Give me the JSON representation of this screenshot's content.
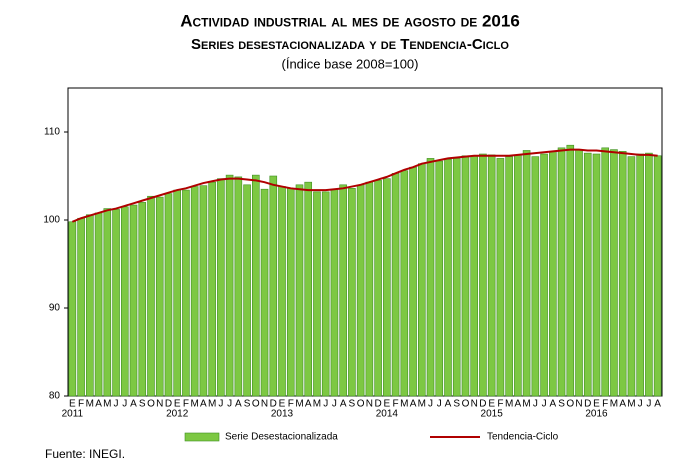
{
  "chart_data": {
    "type": "bar",
    "title": "Actividad industrial al mes de agosto de 2016",
    "subtitle": "Series desestacionalizada y de Tendencia-Ciclo",
    "note": "(Índice base 2008=100)",
    "source": "Fuente: INEGI.",
    "categories": [
      "E",
      "F",
      "M",
      "A",
      "M",
      "J",
      "J",
      "A",
      "S",
      "O",
      "N",
      "D",
      "E",
      "F",
      "M",
      "A",
      "M",
      "J",
      "J",
      "A",
      "S",
      "O",
      "N",
      "D",
      "E",
      "F",
      "M",
      "A",
      "M",
      "J",
      "J",
      "A",
      "S",
      "O",
      "N",
      "D",
      "E",
      "F",
      "M",
      "A",
      "M",
      "J",
      "J",
      "A",
      "S",
      "O",
      "N",
      "D",
      "E",
      "F",
      "M",
      "A",
      "M",
      "J",
      "J",
      "A",
      "S",
      "O",
      "N",
      "D",
      "E",
      "F",
      "M",
      "A",
      "M",
      "J",
      "J",
      "A"
    ],
    "years": [
      "2011",
      "2012",
      "2013",
      "2014",
      "2015",
      "2016"
    ],
    "series": [
      {
        "name": "Serie Desestacionalizada",
        "type": "bar",
        "color": "#7dc843",
        "values": [
          99.8,
          100.2,
          100.6,
          100.8,
          101.3,
          101.2,
          101.5,
          101.7,
          102.0,
          102.7,
          102.6,
          103.0,
          103.4,
          103.4,
          103.8,
          103.9,
          104.3,
          104.7,
          105.1,
          104.9,
          104.0,
          105.1,
          103.5,
          105.0,
          103.8,
          103.6,
          104.0,
          104.3,
          103.2,
          103.2,
          103.5,
          104.0,
          103.6,
          104.0,
          104.3,
          104.5,
          104.7,
          105.3,
          105.6,
          106.0,
          106.4,
          107.0,
          106.7,
          106.9,
          107.0,
          107.3,
          107.3,
          107.5,
          107.4,
          107.0,
          107.2,
          107.4,
          107.9,
          107.2,
          107.5,
          107.8,
          108.2,
          108.5,
          108.0,
          107.6,
          107.5,
          108.2,
          108.0,
          107.8,
          107.2,
          107.5,
          107.6,
          107.3
        ]
      },
      {
        "name": "Tendencia-Ciclo",
        "type": "line",
        "color": "#b00000",
        "values": [
          99.8,
          100.2,
          100.5,
          100.8,
          101.1,
          101.3,
          101.6,
          101.9,
          102.2,
          102.5,
          102.8,
          103.1,
          103.4,
          103.6,
          103.9,
          104.2,
          104.4,
          104.6,
          104.7,
          104.7,
          104.6,
          104.5,
          104.3,
          104.0,
          103.8,
          103.6,
          103.5,
          103.4,
          103.4,
          103.4,
          103.5,
          103.6,
          103.8,
          104.0,
          104.3,
          104.6,
          104.9,
          105.3,
          105.7,
          106.0,
          106.4,
          106.6,
          106.8,
          107.0,
          107.1,
          107.2,
          107.3,
          107.3,
          107.3,
          107.3,
          107.3,
          107.4,
          107.5,
          107.6,
          107.7,
          107.8,
          107.9,
          108.0,
          108.0,
          107.9,
          107.9,
          107.8,
          107.7,
          107.6,
          107.5,
          107.4,
          107.4,
          107.3
        ]
      }
    ],
    "ylim": [
      80,
      115
    ],
    "yticks": [
      80,
      90,
      100,
      110
    ]
  }
}
